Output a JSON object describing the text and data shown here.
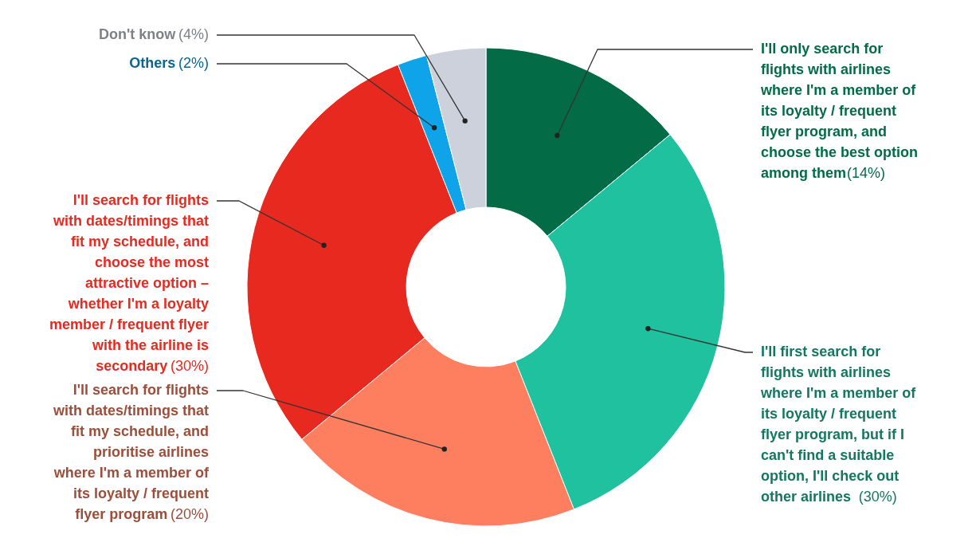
{
  "chart_data": {
    "type": "donut",
    "categories": [
      "I'll only search for flights with airlines where I'm a member of its loyalty / frequent flyer program, and choose the best option among them",
      "I'll first search for flights with airlines where I'm a member of its loyalty / frequent flyer program, but if I can't find a suitable option, I'll check out other airlines",
      "I'll search for flights with dates/timings that fit my schedule, and prioritise airlines where I'm a member of its loyalty / frequent flyer program",
      "I'll search for flights with dates/timings that fit my schedule, and choose the most attractive option – whether I'm a loyalty member / frequent flyer with the airline is secondary",
      "Others",
      "Don't know"
    ],
    "values": [
      14,
      30,
      20,
      30,
      2,
      4
    ],
    "colors": [
      "#036c47",
      "#20c19e",
      "#fe7f5f",
      "#e8291f",
      "#0fa3ea",
      "#cdd1db"
    ],
    "value_labels": [
      "(14%)",
      "(30%)",
      "(20%)",
      "(30%)",
      "(2%)",
      "(4%)"
    ]
  }
}
